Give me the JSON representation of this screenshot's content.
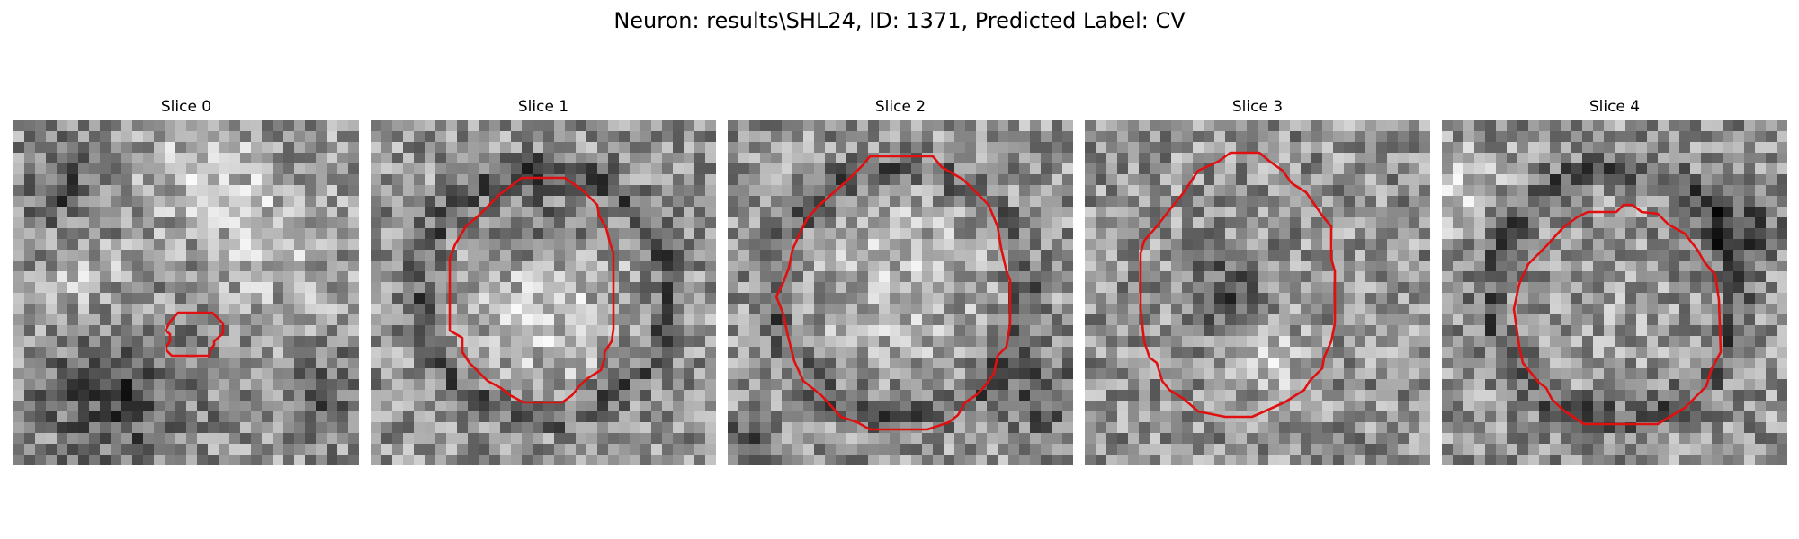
{
  "figure": {
    "title": "Neuron: results\\SHL24, ID: 1371, Predicted Label: CV",
    "contour_color": "#e01010",
    "colormap": "gray",
    "panels": [
      {
        "title": "Slice 0",
        "seed": 11,
        "dark_ring": false,
        "blobs": [
          [
            0.15,
            0.2,
            0.12,
            -0.25
          ],
          [
            0.55,
            0.15,
            0.15,
            0.2
          ],
          [
            0.75,
            0.35,
            0.2,
            0.15
          ],
          [
            0.3,
            0.8,
            0.2,
            -0.3
          ],
          [
            0.9,
            0.8,
            0.12,
            -0.2
          ],
          [
            0.2,
            0.45,
            0.12,
            0.15
          ]
        ]
      },
      {
        "title": "Slice 1",
        "seed": 23,
        "dark_ring": true,
        "blobs": [
          [
            0.5,
            0.55,
            0.22,
            0.2
          ],
          [
            0.5,
            0.3,
            0.14,
            -0.15
          ]
        ]
      },
      {
        "title": "Slice 2",
        "seed": 37,
        "dark_ring": true,
        "blobs": [
          [
            0.5,
            0.45,
            0.25,
            0.15
          ],
          [
            0.9,
            0.8,
            0.1,
            -0.3
          ],
          [
            0.05,
            0.95,
            0.08,
            -0.3
          ]
        ]
      },
      {
        "title": "Slice 3",
        "seed": 51,
        "dark_ring": false,
        "blobs": [
          [
            0.4,
            0.5,
            0.1,
            -0.25
          ],
          [
            0.55,
            0.7,
            0.1,
            0.15
          ]
        ]
      },
      {
        "title": "Slice 4",
        "seed": 67,
        "dark_ring": true,
        "blobs": [
          [
            0.85,
            0.3,
            0.12,
            -0.25
          ],
          [
            0.05,
            0.2,
            0.12,
            0.2
          ],
          [
            0.5,
            0.55,
            0.18,
            0.05
          ]
        ]
      }
    ]
  }
}
